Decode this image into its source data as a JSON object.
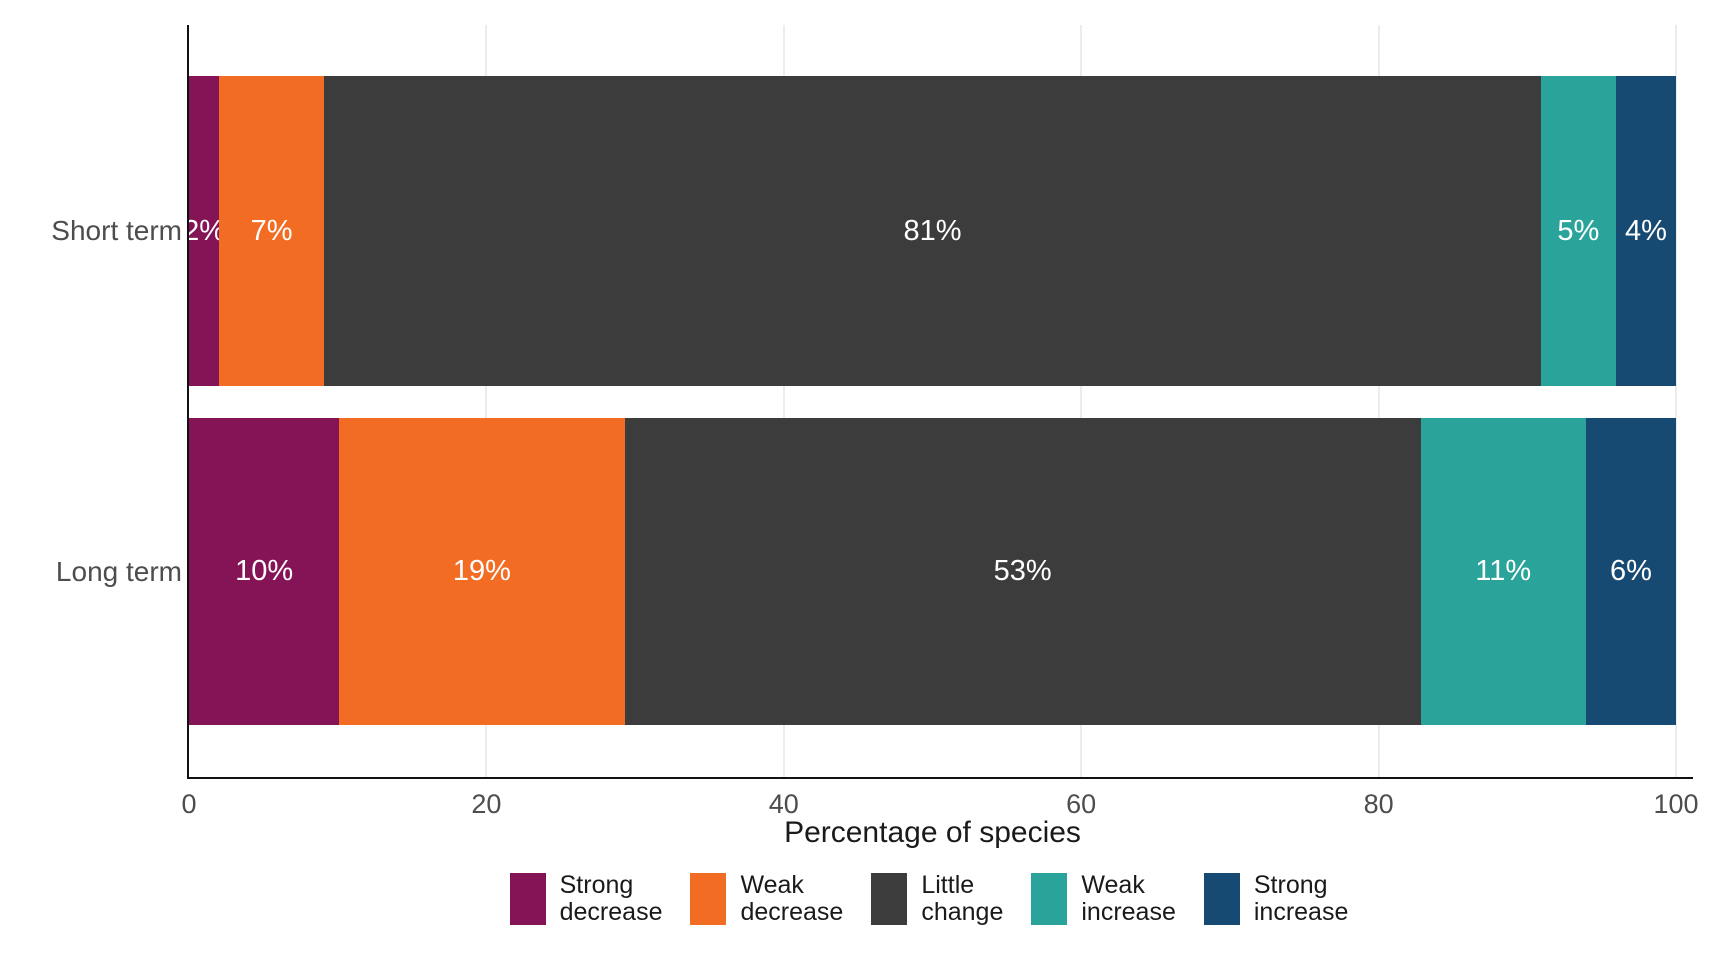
{
  "chart_data": {
    "type": "bar",
    "orientation": "horizontal",
    "stacked": true,
    "title": "",
    "xlabel": "Percentage of species",
    "ylabel": "",
    "categories": [
      "Short term",
      "Long term"
    ],
    "series": [
      {
        "name": "Strong decrease",
        "color": "#851457",
        "values": [
          2,
          10
        ]
      },
      {
        "name": "Weak decrease",
        "color": "#F26C23",
        "values": [
          7,
          19
        ]
      },
      {
        "name": "Little change",
        "color": "#3C3C3C",
        "values": [
          81,
          53
        ]
      },
      {
        "name": "Weak increase",
        "color": "#2AA39A",
        "values": [
          5,
          11
        ]
      },
      {
        "name": "Strong increase",
        "color": "#164A72",
        "values": [
          4,
          6
        ]
      }
    ],
    "bar_labels": [
      [
        "2%",
        "7%",
        "81%",
        "5%",
        "4%"
      ],
      [
        "10%",
        "19%",
        "53%",
        "11%",
        "6%"
      ]
    ],
    "xlim": [
      0,
      100
    ],
    "x_ticks": [
      "0",
      "20",
      "40",
      "60",
      "80",
      "100"
    ],
    "grid": "vertical-major-every-20",
    "legend_position": "bottom"
  },
  "style": {
    "gridline_color": "#ECECEC",
    "axis_line_color": "#111111",
    "tick_label_color": "#4D4D4D",
    "category_label_color": "#4D4D4D",
    "bar_label_color": "#FFFFFF",
    "axis_title_color": "#1A1A1A",
    "legend_text_color": "#1A1A1A",
    "background": "#FFFFFF"
  }
}
